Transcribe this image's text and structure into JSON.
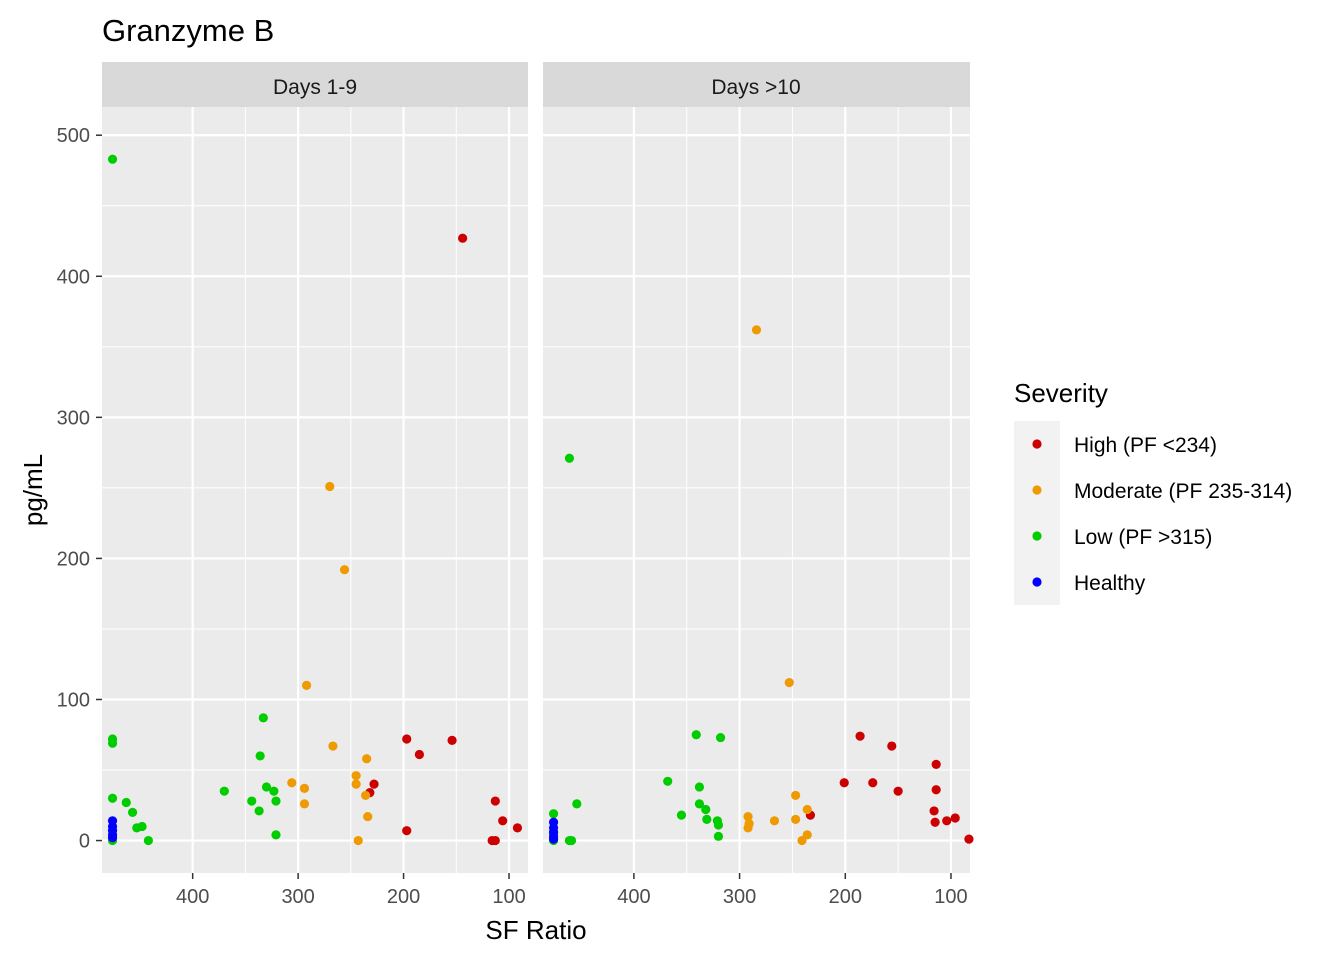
{
  "chart_data": {
    "type": "scatter",
    "title": "Granzyme B",
    "xlabel": "SF Ratio",
    "ylabel": "pg/mL",
    "x_reversed": true,
    "xlim": [
      486,
      82
    ],
    "ylim": [
      -23,
      520
    ],
    "x_ticks": [
      400,
      300,
      200,
      100
    ],
    "y_ticks": [
      0,
      100,
      200,
      300,
      400,
      500
    ],
    "grid": true,
    "legend": {
      "title": "Severity",
      "position": "right",
      "entries": [
        {
          "name": "High (PF <234)",
          "color": "#CC0000"
        },
        {
          "name": "Moderate (PF 235-314)",
          "color": "#EE9A00"
        },
        {
          "name": "Low (PF >315)",
          "color": "#00CD00"
        },
        {
          "name": "Healthy",
          "color": "#0000FF"
        }
      ]
    },
    "panels": [
      {
        "label": "Days 1-9",
        "series": [
          {
            "name": "High (PF <234)",
            "points": [
              [
                144,
                427
              ],
              [
                197,
                72
              ],
              [
                185,
                61
              ],
              [
                154,
                71
              ],
              [
                228,
                40
              ],
              [
                232,
                34
              ],
              [
                197,
                7
              ],
              [
                113,
                28
              ],
              [
                106,
                14
              ],
              [
                92,
                9
              ],
              [
                113,
                0
              ],
              [
                116,
                0
              ]
            ]
          },
          {
            "name": "Moderate (PF 235-314)",
            "points": [
              [
                270,
                251
              ],
              [
                256,
                192
              ],
              [
                292,
                110
              ],
              [
                267,
                67
              ],
              [
                235,
                58
              ],
              [
                245,
                46
              ],
              [
                245,
                40
              ],
              [
                236,
                32
              ],
              [
                234,
                17
              ],
              [
                306,
                41
              ],
              [
                294,
                37
              ],
              [
                294,
                26
              ],
              [
                243,
                0
              ]
            ]
          },
          {
            "name": "Low (PF >315)",
            "points": [
              [
                476,
                483
              ],
              [
                476,
                72
              ],
              [
                476,
                69
              ],
              [
                476,
                30
              ],
              [
                463,
                27
              ],
              [
                457,
                20
              ],
              [
                453,
                9
              ],
              [
                448,
                10
              ],
              [
                442,
                0
              ],
              [
                476,
                0
              ],
              [
                333,
                87
              ],
              [
                336,
                60
              ],
              [
                370,
                35
              ],
              [
                344,
                28
              ],
              [
                337,
                21
              ],
              [
                330,
                38
              ],
              [
                323,
                35
              ],
              [
                321,
                28
              ],
              [
                321,
                4
              ]
            ]
          },
          {
            "name": "Healthy",
            "points": [
              [
                476,
                14
              ],
              [
                476,
                10
              ],
              [
                476,
                7
              ],
              [
                476,
                4
              ],
              [
                476,
                2
              ]
            ]
          }
        ]
      },
      {
        "label": "Days >10",
        "series": [
          {
            "name": "High (PF <234)",
            "points": [
              [
                186,
                74
              ],
              [
                156,
                67
              ],
              [
                114,
                54
              ],
              [
                114,
                36
              ],
              [
                201,
                41
              ],
              [
                174,
                41
              ],
              [
                150,
                35
              ],
              [
                116,
                21
              ],
              [
                104,
                14
              ],
              [
                115,
                13
              ],
              [
                96,
                16
              ],
              [
                233,
                18
              ],
              [
                83,
                1
              ]
            ]
          },
          {
            "name": "Moderate (PF 235-314)",
            "points": [
              [
                284,
                362
              ],
              [
                253,
                112
              ],
              [
                247,
                32
              ],
              [
                236,
                22
              ],
              [
                247,
                15
              ],
              [
                267,
                14
              ],
              [
                292,
                17
              ],
              [
                291,
                12
              ],
              [
                292,
                9
              ],
              [
                236,
                4
              ],
              [
                241,
                0
              ]
            ]
          },
          {
            "name": "Low (PF >315)",
            "points": [
              [
                461,
                271
              ],
              [
                341,
                75
              ],
              [
                318,
                73
              ],
              [
                368,
                42
              ],
              [
                338,
                38
              ],
              [
                454,
                26
              ],
              [
                338,
                26
              ],
              [
                332,
                22
              ],
              [
                355,
                18
              ],
              [
                331,
                15
              ],
              [
                321,
                14
              ],
              [
                320,
                11
              ],
              [
                320,
                3
              ],
              [
                476,
                19
              ],
              [
                476,
                5
              ],
              [
                461,
                0
              ],
              [
                459,
                0
              ],
              [
                476,
                0
              ]
            ]
          },
          {
            "name": "Healthy",
            "points": [
              [
                476,
                13
              ],
              [
                476,
                9
              ],
              [
                476,
                6
              ],
              [
                476,
                3
              ],
              [
                476,
                1
              ]
            ]
          }
        ]
      }
    ]
  }
}
